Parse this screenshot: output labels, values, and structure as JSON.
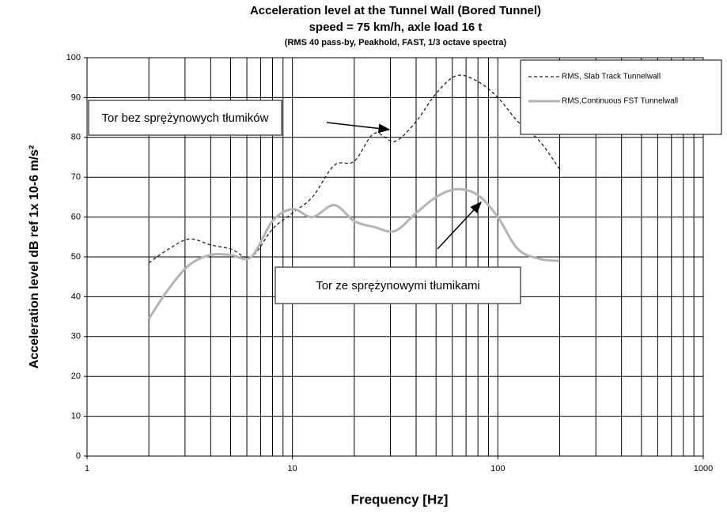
{
  "chart_data": {
    "type": "line",
    "title": "Acceleration level at the Tunnel Wall (Bored Tunnel)",
    "subtitle": "speed = 75 km/h, axle load 16 t",
    "note": "(RMS 40 pass-by, Peakhold, FAST, 1/3 octave spectra)",
    "x_label": "Frequency [Hz]",
    "y_label": "Acceleration level dB ref 1x 10-6 m/s²",
    "x": [
      2,
      2.5,
      3.15,
      4,
      5,
      6.3,
      8,
      10,
      12.5,
      16,
      20,
      25,
      31.5,
      40,
      50,
      63,
      80,
      100,
      125,
      160,
      200
    ],
    "series": [
      {
        "name": "RMS, Slab Track Tunnelwall",
        "color": "#222222",
        "dashed": true,
        "values": [
          48.5,
          52,
          54.5,
          53,
          52,
          50,
          57,
          61,
          65,
          73,
          74,
          81,
          79,
          84,
          91,
          95.5,
          94,
          90,
          84,
          79,
          72
        ]
      },
      {
        "name": "RMS,Continuous FST Tunnelwall",
        "color": "#b4b4b4",
        "dashed": false,
        "values": [
          34.5,
          42,
          48,
          50.5,
          50.5,
          50,
          59,
          62,
          60,
          63,
          59,
          57.5,
          56.5,
          61,
          65,
          67,
          65.5,
          60,
          52,
          49.5,
          49
        ]
      }
    ],
    "xlim": [
      1,
      1000
    ],
    "xticks": [
      1,
      10,
      100,
      1000
    ],
    "xlog": true,
    "ylim": [
      0,
      100
    ],
    "yticks": [
      0,
      10,
      20,
      30,
      40,
      50,
      60,
      70,
      80,
      90,
      100
    ],
    "grid": true,
    "minor_grid": true,
    "legend": "upper right",
    "annotations": [
      "Tor bez sprężynowych tłumików",
      "Tor ze sprężynowymi tłumikami"
    ]
  }
}
